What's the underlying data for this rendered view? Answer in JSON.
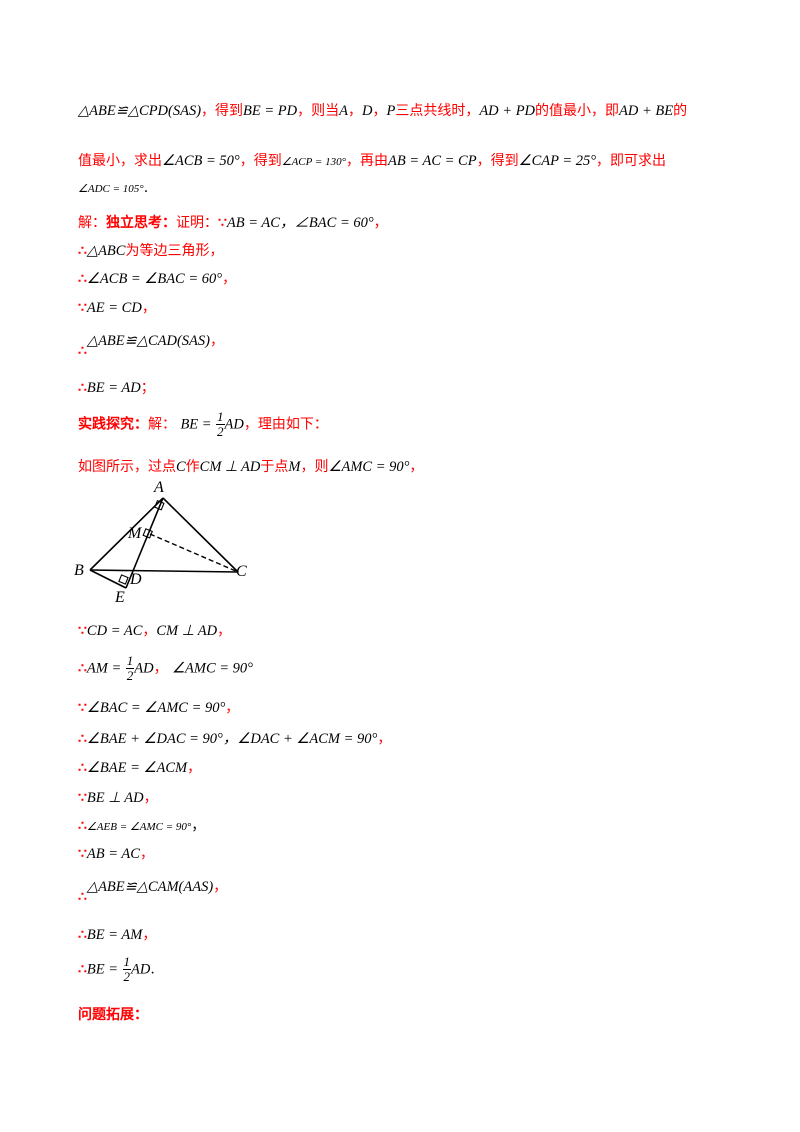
{
  "lines": [
    {
      "id": "l1a",
      "math": "△ABE≌△CPD(SAS)"
    },
    {
      "id": "l1b",
      "text": "，得到"
    },
    {
      "id": "l1c",
      "math": "BE = PD"
    },
    {
      "id": "l1d",
      "text": "，则当"
    },
    {
      "id": "l1e",
      "math": "A"
    },
    {
      "id": "l1f",
      "text": "，"
    },
    {
      "id": "l1g",
      "math": "D"
    },
    {
      "id": "l1h",
      "text": "，"
    },
    {
      "id": "l1i",
      "math": "P"
    },
    {
      "id": "l1j",
      "text": "三点共线时，"
    },
    {
      "id": "l1k",
      "math": "AD + PD"
    },
    {
      "id": "l1l",
      "text": "的值最小，即"
    },
    {
      "id": "l1m",
      "math": "AD + BE"
    },
    {
      "id": "l1n",
      "text": "的"
    }
  ],
  "l2": {
    "t1": "值最小，求出",
    "m1": "∠ACB = 50°",
    "t2": "，得到",
    "m2": "∠ACP = 130°",
    "t3": "，再由",
    "m3": "AB = AC = CP",
    "t4": "，得到",
    "m4": "∠CAP = 25°",
    "t5": "，即可求出"
  },
  "l3": {
    "m1": "∠ADC = 105°",
    "t1": "."
  },
  "l4": {
    "t1": "解：",
    "t2": "独立思考：",
    "t3": "证明：",
    "s1": "∵",
    "m1": "AB = AC，∠BAC = 60°",
    "t4": "，"
  },
  "l5": {
    "s1": "∴",
    "m1": "△ABC",
    "t1": "为等边三角形，"
  },
  "l6": {
    "s1": "∴",
    "m1": "∠ACB = ∠BAC = 60°",
    "t1": "，"
  },
  "l7": {
    "s1": "∵",
    "m1": "AE = CD",
    "t1": "，"
  },
  "l8": {
    "s1": "∴",
    "m1": "△ABE≌△CAD(SAS)",
    "t1": "，"
  },
  "l9": {
    "s1": "∴",
    "m1": "BE = AD",
    "t1": "；"
  },
  "l10": {
    "t1": "实践探究：",
    "t2": "解：",
    "m1": "BE =",
    "fn": "1",
    "fd": "2",
    "m2": "AD",
    "t3": "，理由如下："
  },
  "l11": {
    "t1": "如图所示，过点",
    "m1": "C",
    "t2": "作",
    "m2": "CM ⊥ AD",
    "t3": "于点",
    "m3": "M",
    "t4": "，则",
    "m4": "∠AMC = 90°",
    "t5": "，"
  },
  "figure": {
    "A": "A",
    "M": "M",
    "B": "B",
    "D": "D",
    "C": "C",
    "E": "E"
  },
  "l12": {
    "s1": "∵",
    "m1": "CD = AC",
    "t1": "，",
    "m2": "CM ⊥ AD",
    "t2": "，"
  },
  "l13": {
    "s1": "∴",
    "m1": "AM =",
    "fn": "1",
    "fd": "2",
    "m2": "AD",
    "t1": "，",
    "m3": "∠AMC = 90°"
  },
  "l14": {
    "s1": "∵",
    "m1": "∠BAC = ∠AMC = 90°",
    "t1": "，"
  },
  "l15": {
    "s1": "∴",
    "m1": "∠BAE + ∠DAC = 90°，∠DAC + ∠ACM = 90°",
    "t1": "，"
  },
  "l16": {
    "s1": "∴",
    "m1": "∠BAE = ∠ACM",
    "t1": "，"
  },
  "l17": {
    "s1": "∵",
    "m1": "BE ⊥ AD",
    "t1": "，"
  },
  "l18": {
    "s1": "∴",
    "m1": "∠AEB = ∠AMC = 90°",
    "t1": "，"
  },
  "l19": {
    "s1": "∵",
    "m1": "AB = AC",
    "t1": "，"
  },
  "l20": {
    "s1": "∴",
    "m1": "△ABE≌△CAM(AAS)",
    "t1": "，"
  },
  "l21": {
    "s1": "∴",
    "m1": "BE = AM",
    "t1": "，"
  },
  "l22": {
    "s1": "∴",
    "m1": "BE =",
    "fn": "1",
    "fd": "2",
    "m2": "AD",
    "t1": "."
  },
  "l23": {
    "t1": "问题拓展："
  }
}
